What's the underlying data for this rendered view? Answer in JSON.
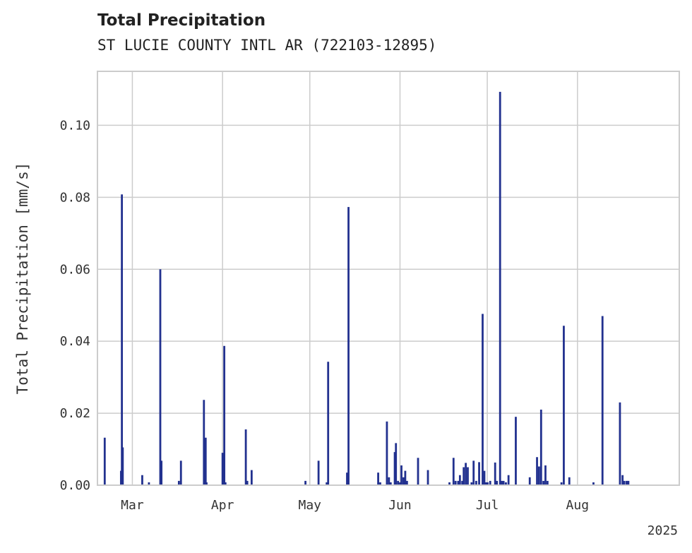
{
  "chart_data": {
    "type": "bar",
    "title": "Total Precipitation",
    "subtitle": "ST LUCIE COUNTY INTL AR (722103-12895)",
    "xlabel": "",
    "ylabel": "Total Precipitation [mm/s]",
    "year_label": "2025",
    "ylim": [
      0,
      0.115
    ],
    "y_ticks": [
      {
        "value": 0.0,
        "label": "0.00"
      },
      {
        "value": 0.02,
        "label": "0.02"
      },
      {
        "value": 0.04,
        "label": "0.04"
      },
      {
        "value": 0.06,
        "label": "0.06"
      },
      {
        "value": 0.08,
        "label": "0.08"
      },
      {
        "value": 0.1,
        "label": "0.10"
      }
    ],
    "x_range_days": [
      0,
      200
    ],
    "x_ticks": [
      {
        "day": 12,
        "label": "Mar"
      },
      {
        "day": 43,
        "label": "Apr"
      },
      {
        "day": 73,
        "label": "May"
      },
      {
        "day": 104,
        "label": "Jun"
      },
      {
        "day": 134,
        "label": "Jul"
      },
      {
        "day": 165,
        "label": "Aug"
      }
    ],
    "grid": true,
    "bar_color": "#22318f",
    "series": [
      {
        "name": "Total Precipitation",
        "x_days": [
          2.5,
          8.1,
          8.4,
          8.7,
          15.4,
          17.7,
          21.6,
          22.0,
          28.0,
          28.7,
          36.6,
          37.2,
          37.5,
          43.0,
          43.6,
          44.0,
          51.0,
          51.5,
          53.0,
          71.5,
          76.0,
          78.8,
          79.3,
          85.8,
          86.3,
          96.5,
          97.2,
          99.5,
          100.2,
          100.8,
          102.2,
          102.6,
          103.3,
          104.0,
          104.5,
          105.2,
          105.8,
          106.4,
          110.2,
          113.6,
          121.0,
          122.4,
          123.1,
          124.0,
          124.6,
          125.4,
          125.9,
          126.6,
          127.3,
          128.6,
          129.3,
          130.2,
          131.2,
          132.4,
          133.0,
          133.6,
          134.1,
          135.0,
          136.7,
          137.3,
          138.4,
          139.0,
          139.6,
          140.4,
          141.3,
          143.8,
          148.6,
          151.1,
          151.8,
          152.5,
          153.3,
          154.0,
          154.7,
          159.5,
          160.3,
          162.2,
          170.5,
          173.6,
          179.6,
          180.5,
          181.1,
          181.9,
          182.5
        ],
        "values": [
          0.0132,
          0.004,
          0.0808,
          0.0105,
          0.0028,
          0.0008,
          0.06,
          0.0068,
          0.0012,
          0.0068,
          0.0237,
          0.0132,
          0.0008,
          0.009,
          0.0387,
          0.0008,
          0.0155,
          0.0012,
          0.0042,
          0.0012,
          0.0068,
          0.0008,
          0.0343,
          0.0035,
          0.0773,
          0.0035,
          0.0008,
          0.0177,
          0.0022,
          0.0008,
          0.0092,
          0.0117,
          0.0012,
          0.0008,
          0.0055,
          0.0022,
          0.004,
          0.0012,
          0.0076,
          0.0042,
          0.0008,
          0.0076,
          0.0012,
          0.0012,
          0.0028,
          0.0012,
          0.005,
          0.0062,
          0.005,
          0.0008,
          0.0068,
          0.0012,
          0.0064,
          0.0476,
          0.004,
          0.0008,
          0.0008,
          0.0012,
          0.0063,
          0.0012,
          0.1093,
          0.0012,
          0.0012,
          0.0008,
          0.0028,
          0.019,
          0.0022,
          0.0078,
          0.0052,
          0.021,
          0.0012,
          0.0055,
          0.0012,
          0.0008,
          0.0443,
          0.0022,
          0.0008,
          0.047,
          0.023,
          0.0028,
          0.0012,
          0.0012,
          0.0012
        ]
      }
    ]
  }
}
